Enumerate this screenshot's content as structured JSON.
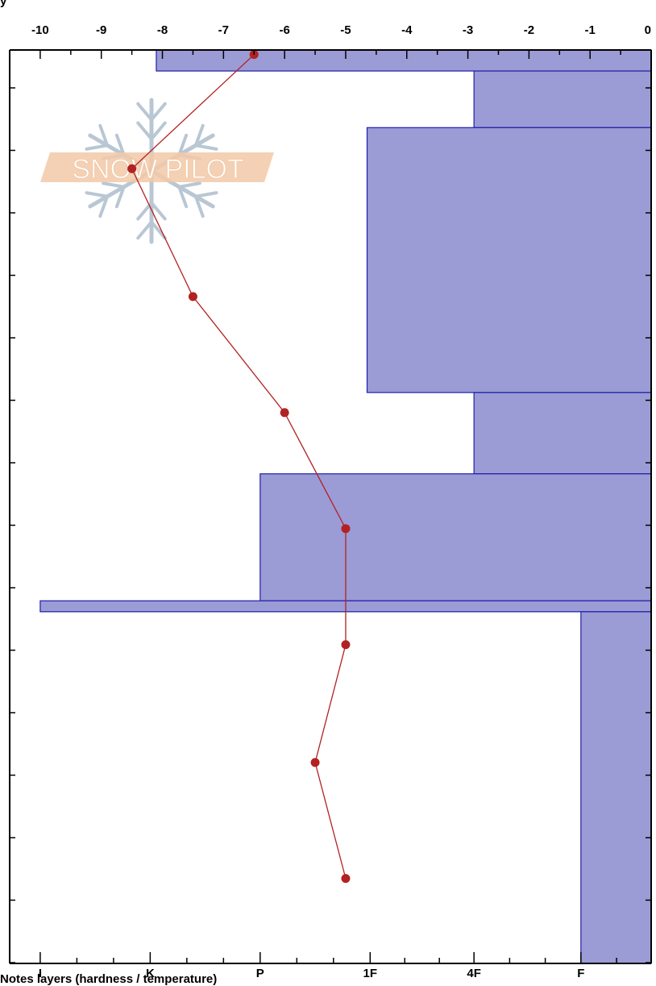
{
  "header": {
    "text": "y"
  },
  "footer": {
    "text": "Notes layers (hardness / temperature)"
  },
  "watermark": {
    "text": "SNOW PILOT",
    "fill": "#f2c9a8",
    "stroke": "#ffffff",
    "flake_color": "#b9c7d4"
  },
  "colors": {
    "bar_fill": "#9b9bd6",
    "bar_stroke": "#1f1fa8",
    "temp_line": "#b22222",
    "axis": "#000000"
  },
  "chart_data": [
    {
      "type": "area",
      "title": "",
      "xlabel": "",
      "ylabel": "",
      "x_axis": "bottom",
      "hardness_ticks": [
        "I",
        "K",
        "P",
        "1F",
        "4F",
        "F"
      ],
      "hardness_tick_values": [
        -10,
        -8.2,
        -6.4,
        -4.6,
        -2.9,
        -1.15
      ],
      "xlim": [
        -10.5,
        0
      ],
      "ylim": [
        0,
        1
      ],
      "grid": false,
      "layers": [
        {
          "top": 1.0,
          "bottom": 0.977,
          "hardness_value": -8.1
        },
        {
          "top": 0.977,
          "bottom": 0.915,
          "hardness_value": -2.9
        },
        {
          "top": 0.915,
          "bottom": 0.625,
          "hardness_value": -4.65
        },
        {
          "top": 0.625,
          "bottom": 0.536,
          "hardness_value": -2.9
        },
        {
          "top": 0.536,
          "bottom": 0.397,
          "hardness_value": -6.4
        },
        {
          "top": 0.397,
          "bottom": 0.385,
          "hardness_value": -10.0
        },
        {
          "top": 0.385,
          "bottom": 0.0,
          "hardness_value": -1.15
        }
      ]
    },
    {
      "type": "line",
      "title": "",
      "xlabel": "",
      "ylabel": "",
      "x_axis": "top",
      "x_ticks": [
        "-10",
        "-9",
        "-8",
        "-7",
        "-6",
        "-5",
        "-4",
        "-3",
        "-2",
        "-1",
        "0"
      ],
      "xlim": [
        -10.5,
        0
      ],
      "ylim": [
        0,
        1
      ],
      "grid": false,
      "series": [
        {
          "points": [
            {
              "temperature": -6.5,
              "depth": 0.995
            },
            {
              "temperature": -8.5,
              "depth": 0.87
            },
            {
              "temperature": -7.5,
              "depth": 0.73
            },
            {
              "temperature": -6.0,
              "depth": 0.603
            },
            {
              "temperature": -5.0,
              "depth": 0.476
            },
            {
              "temperature": -5.0,
              "depth": 0.349
            },
            {
              "temperature": -5.5,
              "depth": 0.22
            },
            {
              "temperature": -5.0,
              "depth": 0.093
            }
          ]
        }
      ]
    }
  ]
}
